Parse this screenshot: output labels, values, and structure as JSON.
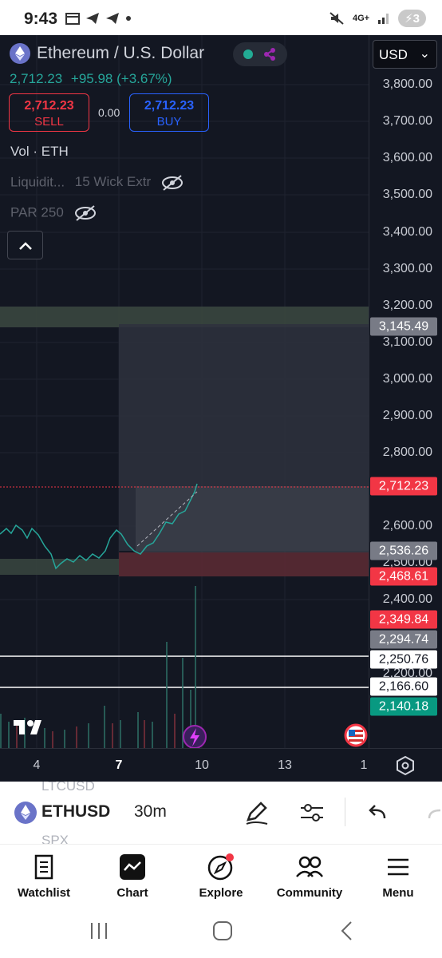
{
  "status_bar": {
    "time": "9:43",
    "network": "4G+",
    "battery": "3"
  },
  "header": {
    "symbol_title": "Ethereum / U.S. Dollar",
    "price": "2,712.23",
    "change": "+95.98 (+3.67%)",
    "sell_price": "2,712.23",
    "sell_label": "SELL",
    "spread": "0.00",
    "buy_price": "2,712.23",
    "buy_label": "BUY",
    "currency": "USD"
  },
  "indicators": {
    "vol": "Vol · ETH",
    "liquidity": "Liquidit...",
    "wick": "15 Wick Extr",
    "par": "PAR 250"
  },
  "price_axis": {
    "ticks": [
      "3,800.00",
      "3,700.00",
      "3,600.00",
      "3,500.00",
      "3,400.00",
      "3,300.00",
      "3,200.00",
      "3,100.00",
      "3,000.00",
      "2,900.00",
      "2,800.00",
      "2,600.00",
      "2,500.00",
      "2,400.00",
      "2,200.00"
    ],
    "tags": [
      {
        "label": "3,145.49",
        "bg": "#787b86",
        "fg": "#ffffff"
      },
      {
        "label": "2,712.23",
        "bg": "#f23645",
        "fg": "#ffffff"
      },
      {
        "label": "2,536.26",
        "bg": "#787b86",
        "fg": "#ffffff"
      },
      {
        "label": "2,468.61",
        "bg": "#f23645",
        "fg": "#ffffff"
      },
      {
        "label": "2,349.84",
        "bg": "#f23645",
        "fg": "#ffffff"
      },
      {
        "label": "2,294.74",
        "bg": "#787b86",
        "fg": "#ffffff"
      },
      {
        "label": "2,250.76",
        "bg": "#ffffff",
        "fg": "#131722"
      },
      {
        "label": "2,166.60",
        "bg": "#ffffff",
        "fg": "#131722"
      },
      {
        "label": "2,140.18",
        "bg": "#089981",
        "fg": "#ffffff"
      }
    ]
  },
  "time_axis": {
    "ticks": [
      "4",
      "7",
      "10",
      "13",
      "1"
    ]
  },
  "toolbar": {
    "ghost_above": "LTCUSD",
    "symbol": "ETHUSD",
    "interval": "30m",
    "ghost_below": "SPX"
  },
  "nav": {
    "items": [
      {
        "label": "Watchlist"
      },
      {
        "label": "Chart"
      },
      {
        "label": "Explore"
      },
      {
        "label": "Community"
      },
      {
        "label": "Menu"
      }
    ]
  },
  "colors": {
    "up": "#26a69a",
    "down": "#f23645",
    "bg": "#131722",
    "accent": "#2962ff"
  }
}
